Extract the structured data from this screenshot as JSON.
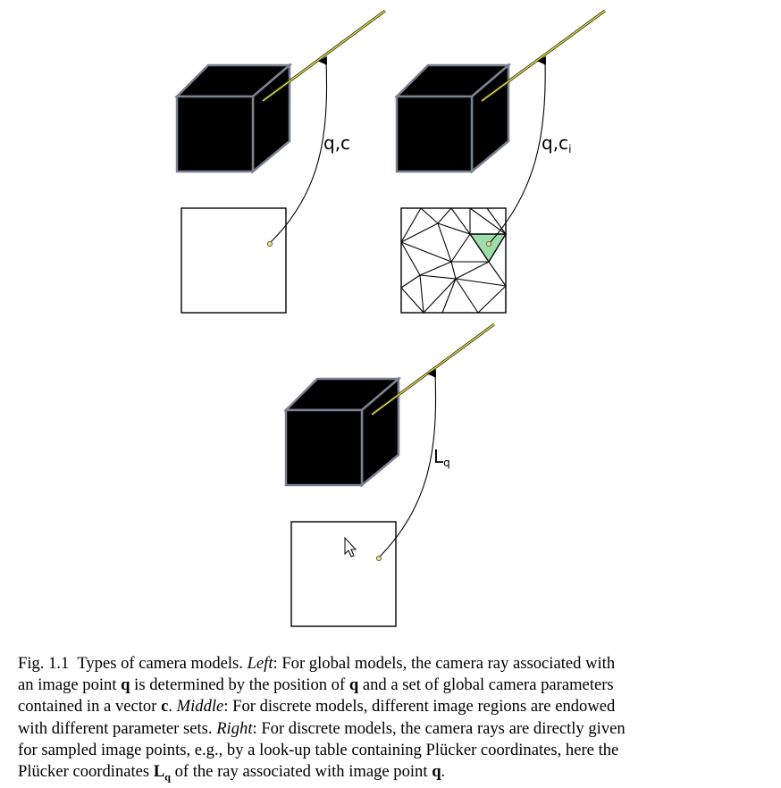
{
  "figure": {
    "panels": [
      {
        "id": "left",
        "label": "q,c",
        "sub": ""
      },
      {
        "id": "middle",
        "label": "q,c",
        "sub": "i"
      },
      {
        "id": "right",
        "label": "L",
        "sub": "q"
      }
    ],
    "colors": {
      "cube_fill": "#000000",
      "cube_edge": "#7a8190",
      "ray_outer": "#3a3a00",
      "ray_inner": "#f2e66a",
      "point_fill": "#e8e08a",
      "point_stroke": "#6b6b3a",
      "highlight_triangle": "#9fdcae"
    },
    "cursor_icon": "mouse-pointer-icon"
  },
  "caption": {
    "fig_label": "Fig. 1.1",
    "title": "Types of camera models.",
    "left_label": "Left",
    "left_text_1": ": For global models, the camera ray associated with",
    "left_text_2": "an image point",
    "q1": "q",
    "left_text_3": "is determined by the position of",
    "q2": "q",
    "left_text_4": "and a set of global camera parameters",
    "left_text_5": "contained in a vector",
    "c": "c",
    "middle_label": "Middle",
    "middle_text_1": ": For discrete models, different image regions are endowed",
    "middle_text_2": "with different parameter sets.",
    "right_label": "Right",
    "right_text_1": ": For discrete models, the camera rays are directly given",
    "right_text_2": "for sampled image points, e.g., by a look-up table containing Plücker coordinates, here the",
    "right_text_3": "Plücker coordinates",
    "lq_main": "L",
    "lq_sub": "q",
    "right_text_4": "of the ray associated with image point",
    "q3": "q"
  }
}
